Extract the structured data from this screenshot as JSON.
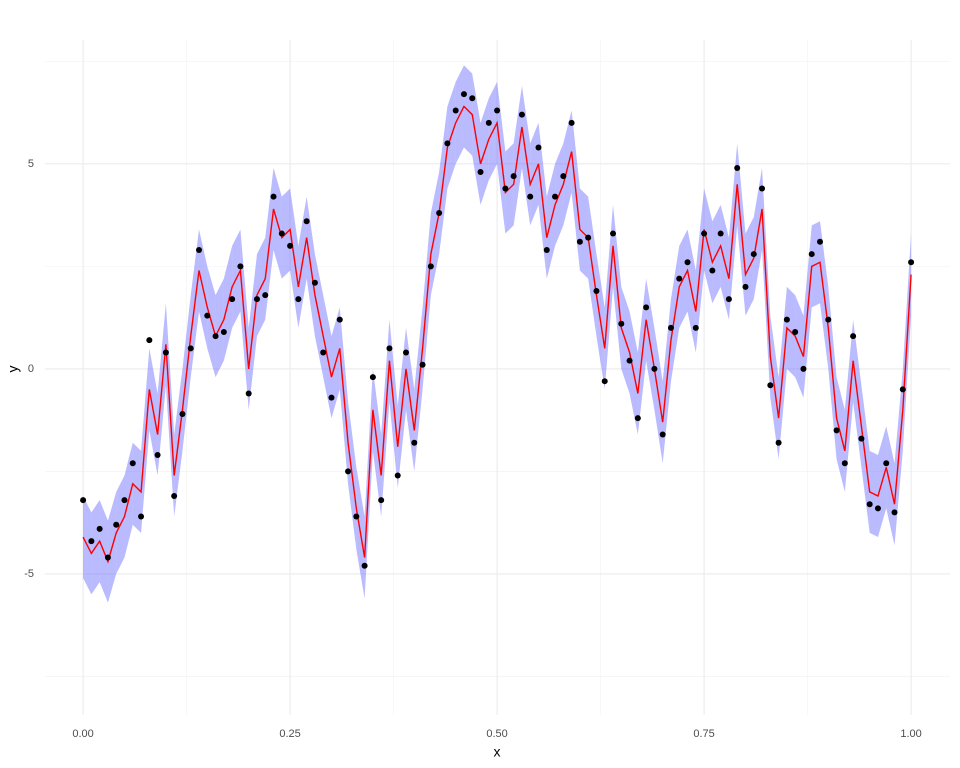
{
  "chart_data": {
    "type": "scatter",
    "x_label": "x",
    "y_label": "y",
    "xlim": [
      -0.046,
      1.047
    ],
    "ylim": [
      -8.44,
      8.02
    ],
    "xticks": [
      {
        "value": 0,
        "label": "0.00"
      },
      {
        "value": 0.25,
        "label": "0.25"
      },
      {
        "value": 0.5,
        "label": "0.50"
      },
      {
        "value": 0.75,
        "label": "0.75"
      },
      {
        "value": 1,
        "label": "1.00"
      }
    ],
    "yticks": [
      -5,
      0,
      5
    ],
    "x_minor_grid": [
      0.125,
      0.375,
      0.625,
      0.875
    ],
    "y_minor_grid": [
      -7.5,
      -2.5,
      2.5,
      7.5
    ],
    "grid": true,
    "x": [
      0,
      0.01,
      0.02,
      0.03,
      0.04,
      0.05,
      0.06,
      0.07,
      0.08,
      0.09,
      0.1,
      0.11,
      0.12,
      0.13,
      0.14,
      0.15,
      0.16,
      0.17,
      0.18,
      0.19,
      0.2,
      0.21,
      0.22,
      0.23,
      0.24,
      0.25,
      0.26,
      0.27,
      0.28,
      0.29,
      0.3,
      0.31,
      0.32,
      0.33,
      0.34,
      0.35,
      0.36,
      0.37,
      0.38,
      0.39,
      0.4,
      0.41,
      0.42,
      0.43,
      0.44,
      0.45,
      0.46,
      0.47,
      0.48,
      0.49,
      0.5,
      0.51,
      0.52,
      0.53,
      0.54,
      0.55,
      0.56,
      0.57,
      0.58,
      0.59,
      0.6,
      0.61,
      0.62,
      0.63,
      0.64,
      0.65,
      0.66,
      0.67,
      0.68,
      0.69,
      0.7,
      0.71,
      0.72,
      0.73,
      0.74,
      0.75,
      0.76,
      0.77,
      0.78,
      0.79,
      0.8,
      0.81,
      0.82,
      0.83,
      0.84,
      0.85,
      0.86,
      0.87,
      0.88,
      0.89,
      0.9,
      0.91,
      0.92,
      0.93,
      0.94,
      0.95,
      0.96,
      0.97,
      0.98,
      0.99,
      1
    ],
    "points": {
      "color": "#000000",
      "values": [
        -3.2,
        -4.2,
        -3.9,
        -4.6,
        -3.8,
        -3.2,
        -2.3,
        -3.6,
        0.7,
        -2.1,
        0.4,
        -3.1,
        -1.1,
        0.5,
        2.9,
        1.3,
        0.8,
        0.9,
        1.7,
        2.5,
        -0.6,
        1.7,
        1.8,
        4.2,
        3.3,
        3.0,
        1.7,
        3.6,
        2.1,
        0.4,
        -0.7,
        1.2,
        -2.5,
        -3.6,
        -4.8,
        -0.2,
        -3.2,
        0.5,
        -2.6,
        0.4,
        -1.8,
        0.1,
        2.5,
        3.8,
        5.5,
        6.3,
        6.7,
        6.6,
        4.8,
        6.0,
        6.3,
        4.4,
        4.7,
        6.2,
        4.2,
        5.4,
        2.9,
        4.2,
        4.7,
        6.0,
        3.1,
        3.2,
        1.9,
        -0.3,
        3.3,
        1.1,
        0.2,
        -1.2,
        1.5,
        0.0,
        -1.6,
        1.0,
        2.2,
        2.6,
        1.0,
        3.3,
        2.4,
        3.3,
        1.7,
        4.9,
        2.0,
        2.8,
        4.4,
        -0.4,
        -1.8,
        1.2,
        0.9,
        0.0,
        2.8,
        3.1,
        1.2,
        -1.5,
        -2.3,
        0.8,
        -1.7,
        -3.3,
        -3.4,
        -2.3,
        -3.5,
        -0.5,
        2.6
      ]
    },
    "fit": {
      "color": "#ff0000",
      "values": [
        -4.1,
        -4.5,
        -4.2,
        -4.7,
        -4.0,
        -3.6,
        -2.8,
        -3.0,
        -0.5,
        -1.6,
        0.6,
        -2.6,
        -1.0,
        0.8,
        2.4,
        1.5,
        0.8,
        1.2,
        2.0,
        2.4,
        0.0,
        1.8,
        2.2,
        3.9,
        3.2,
        3.4,
        2.0,
        3.2,
        1.8,
        0.8,
        -0.2,
        0.5,
        -1.8,
        -3.4,
        -4.6,
        -1.0,
        -2.6,
        0.2,
        -1.9,
        0.0,
        -1.5,
        0.5,
        2.8,
        3.8,
        5.4,
        6.0,
        6.4,
        6.2,
        5.0,
        5.6,
        6.0,
        4.3,
        4.5,
        5.9,
        4.5,
        5.0,
        3.2,
        4.0,
        4.5,
        5.3,
        3.4,
        3.2,
        1.8,
        0.5,
        3.0,
        1.0,
        0.4,
        -0.6,
        1.2,
        0.0,
        -1.3,
        0.7,
        2.0,
        2.4,
        1.4,
        3.4,
        2.6,
        3.0,
        2.2,
        4.5,
        2.3,
        2.7,
        3.9,
        0.3,
        -1.2,
        1.0,
        0.8,
        0.3,
        2.5,
        2.6,
        1.0,
        -1.2,
        -2.0,
        0.2,
        -1.4,
        -3.0,
        -3.1,
        -2.4,
        -3.3,
        -1.0,
        2.3
      ]
    },
    "band": {
      "color": "#6666ff",
      "lo": [
        -5.1,
        -5.5,
        -5.2,
        -5.7,
        -5.0,
        -4.6,
        -3.8,
        -4.0,
        -1.5,
        -2.6,
        -0.4,
        -3.6,
        -2.0,
        -0.2,
        1.4,
        0.5,
        -0.2,
        0.2,
        1.0,
        1.4,
        -1.0,
        0.8,
        1.2,
        2.9,
        2.2,
        2.4,
        1.0,
        2.2,
        0.8,
        -0.2,
        -1.2,
        -0.5,
        -2.8,
        -4.4,
        -5.6,
        -2.0,
        -3.6,
        -0.8,
        -2.9,
        -1.0,
        -2.5,
        -0.5,
        1.8,
        2.8,
        4.4,
        5.0,
        5.4,
        5.2,
        4.0,
        4.6,
        5.0,
        3.3,
        3.5,
        4.9,
        3.5,
        4.0,
        2.2,
        3.0,
        3.5,
        4.3,
        2.4,
        2.2,
        0.8,
        -0.5,
        2.0,
        0.0,
        -0.6,
        -1.6,
        0.2,
        -1.0,
        -2.3,
        -0.3,
        1.0,
        1.4,
        0.4,
        2.4,
        1.6,
        2.0,
        1.2,
        3.5,
        1.3,
        1.7,
        2.9,
        -0.7,
        -2.2,
        0.0,
        -0.2,
        -0.7,
        1.5,
        1.6,
        0.0,
        -2.2,
        -3.0,
        -0.8,
        -2.4,
        -4.0,
        -4.1,
        -3.4,
        -4.3,
        -2.0,
        1.3
      ],
      "hi": [
        -3.1,
        -3.5,
        -3.2,
        -3.7,
        -3.0,
        -2.6,
        -1.8,
        -2.0,
        0.5,
        -0.6,
        1.6,
        -1.6,
        0.0,
        1.8,
        3.4,
        2.5,
        1.8,
        2.2,
        3.0,
        3.4,
        1.0,
        2.8,
        3.2,
        4.9,
        4.2,
        4.4,
        3.0,
        4.2,
        2.8,
        1.8,
        0.8,
        1.5,
        -0.8,
        -2.4,
        -3.6,
        0.0,
        -1.6,
        1.2,
        -0.9,
        1.0,
        -0.5,
        1.5,
        3.8,
        4.8,
        6.4,
        7.0,
        7.4,
        7.2,
        6.0,
        6.6,
        7.0,
        5.3,
        5.5,
        6.9,
        5.5,
        6.0,
        4.2,
        5.0,
        5.5,
        6.3,
        4.4,
        4.2,
        2.8,
        1.5,
        4.0,
        2.0,
        1.4,
        0.4,
        2.2,
        1.0,
        -0.3,
        1.7,
        3.0,
        3.4,
        2.4,
        4.4,
        3.6,
        4.0,
        3.2,
        5.5,
        3.3,
        3.7,
        4.9,
        1.3,
        -0.2,
        2.0,
        1.8,
        1.3,
        3.5,
        3.6,
        2.0,
        -0.2,
        -1.0,
        1.2,
        -0.4,
        -2.0,
        -2.1,
        -1.4,
        -2.3,
        0.0,
        3.3
      ]
    }
  }
}
